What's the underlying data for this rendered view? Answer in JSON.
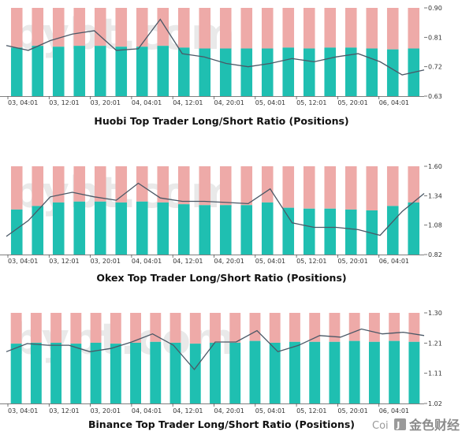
{
  "colors": {
    "long": "#1fbfb1",
    "short": "#eeaaa8",
    "line": "#4a5866",
    "axis": "#555555"
  },
  "watermark": {
    "brand": "bybt.com",
    "corner_text": "Coi",
    "corner_cn": "金色财经",
    "logo_icon": "jinse-logo-icon"
  },
  "chart_data": [
    {
      "type": "bar",
      "title": "Huobi Top Trader Long/Short Ratio (Positions)",
      "x_ticks": [
        "03, 04:01",
        "03, 12:01",
        "03, 20:01",
        "04, 04:01",
        "04, 12:01",
        "04, 20:01",
        "05, 04:01",
        "05, 12:01",
        "05, 20:01",
        "06, 04:01"
      ],
      "y_ticks": [
        "0.90",
        "0.81",
        "0.72",
        "0.63"
      ],
      "ylim": [
        0.63,
        0.9
      ],
      "series": [
        {
          "values": [
            0.785,
            0.77,
            0.8,
            0.82,
            0.83,
            0.77,
            0.775,
            0.865,
            0.76,
            0.75,
            0.73,
            0.72,
            0.73,
            0.745,
            0.735,
            0.75,
            0.76,
            0.735,
            0.695,
            0.71
          ]
        }
      ],
      "long_share": [
        0.55,
        0.57,
        0.56,
        0.57,
        0.57,
        0.56,
        0.56,
        0.57,
        0.55,
        0.54,
        0.54,
        0.54,
        0.54,
        0.55,
        0.54,
        0.55,
        0.55,
        0.54,
        0.53,
        0.54
      ]
    },
    {
      "type": "bar",
      "title": "Okex Top Trader Long/Short Ratio (Positions)",
      "x_ticks": [
        "03, 04:01",
        "03, 12:01",
        "03, 20:01",
        "04, 04:01",
        "04, 12:01",
        "04, 20:01",
        "05, 04:01",
        "05, 12:01",
        "05, 20:01",
        "06, 04:01"
      ],
      "y_ticks": [
        "1.60",
        "1.34",
        "1.08",
        "0.82"
      ],
      "ylim": [
        0.82,
        1.6
      ],
      "series": [
        {
          "values": [
            0.98,
            1.12,
            1.33,
            1.37,
            1.33,
            1.3,
            1.45,
            1.32,
            1.29,
            1.29,
            1.28,
            1.27,
            1.4,
            1.1,
            1.06,
            1.06,
            1.04,
            0.99,
            1.2,
            1.36
          ]
        }
      ],
      "long_share": [
        0.51,
        0.55,
        0.59,
        0.6,
        0.6,
        0.59,
        0.6,
        0.59,
        0.57,
        0.56,
        0.56,
        0.56,
        0.59,
        0.53,
        0.52,
        0.52,
        0.51,
        0.5,
        0.55,
        0.59
      ]
    },
    {
      "type": "bar",
      "title": "Binance Top Trader Long/Short Ratio (Positions)",
      "x_ticks": [
        "03, 04:01",
        "03, 12:01",
        "03, 20:01",
        "04, 04:01",
        "04, 12:01",
        "04, 20:01",
        "05, 04:01",
        "05, 12:01",
        "05, 20:01",
        "06, 04:01"
      ],
      "y_ticks": [
        "1.30",
        "1.21",
        "1.11",
        "1.02"
      ],
      "ylim": [
        1.02,
        1.3
      ],
      "series": [
        {
          "values": [
            1.18,
            1.205,
            1.2,
            1.2,
            1.18,
            1.19,
            1.21,
            1.235,
            1.2,
            1.125,
            1.21,
            1.21,
            1.245,
            1.18,
            1.2,
            1.23,
            1.225,
            1.25,
            1.235,
            1.24,
            1.23
          ]
        }
      ],
      "long_share": [
        0.66,
        0.67,
        0.67,
        0.66,
        0.67,
        0.66,
        0.67,
        0.68,
        0.67,
        0.66,
        0.67,
        0.67,
        0.69,
        0.67,
        0.68,
        0.68,
        0.68,
        0.69,
        0.68,
        0.69,
        0.68
      ]
    }
  ]
}
